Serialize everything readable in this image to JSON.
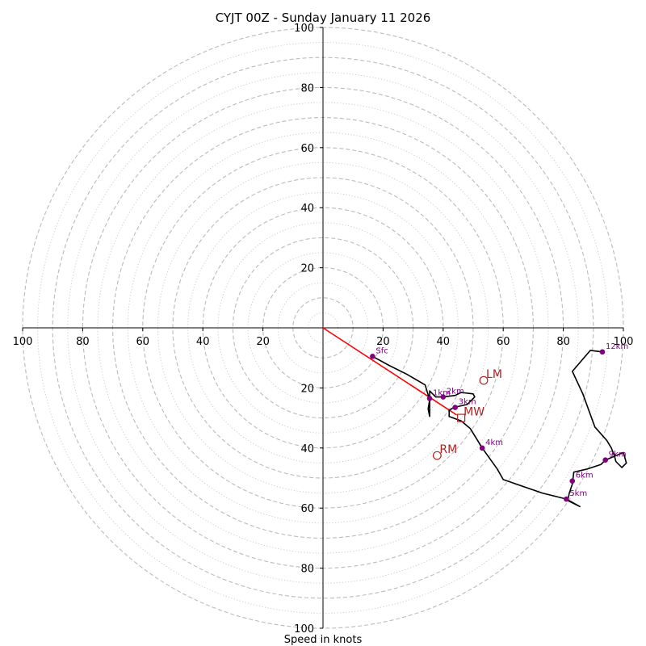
{
  "chart_data": {
    "type": "hodograph",
    "title": "CYJT 00Z - Sunday January 11 2026",
    "xlabel": "Speed in knots",
    "units": "knots",
    "axis_range": [
      -100,
      100
    ],
    "axis_tick_values": [
      20,
      40,
      60,
      80,
      100
    ],
    "axis_tick_labels": [
      "20",
      "40",
      "60",
      "80",
      "100"
    ],
    "ring_speeds_dashed": [
      10,
      20,
      30,
      40,
      50,
      60,
      70,
      80,
      90,
      100
    ],
    "ring_speeds_dotted": [
      5,
      15,
      25,
      35,
      45,
      55,
      65,
      75,
      85,
      95
    ],
    "colors": {
      "trace": "#000000",
      "points": "#800080",
      "motion": "#b22222",
      "shear_vector": "#ff0000",
      "rings": "#bbbbbb",
      "axes": "#000000"
    },
    "trace": [
      [
        16.5,
        -9.5
      ],
      [
        22,
        -12.5
      ],
      [
        28,
        -15.5
      ],
      [
        34,
        -19
      ],
      [
        35.5,
        -24
      ],
      [
        35,
        -27
      ],
      [
        35.5,
        -29.5
      ],
      [
        35.5,
        -26.5
      ],
      [
        35.5,
        -23.5
      ],
      [
        35.5,
        -21
      ],
      [
        37.5,
        -23
      ],
      [
        40,
        -23
      ],
      [
        44,
        -22.5
      ],
      [
        46,
        -21.5
      ],
      [
        50,
        -22
      ],
      [
        50.5,
        -23
      ],
      [
        48,
        -25.5
      ],
      [
        43.5,
        -26.5
      ],
      [
        42,
        -27.5
      ],
      [
        42,
        -29.5
      ],
      [
        46,
        -31
      ],
      [
        49,
        -33.5
      ],
      [
        53,
        -40
      ],
      [
        58,
        -47
      ],
      [
        60,
        -50.5
      ],
      [
        73,
        -55
      ],
      [
        81,
        -57
      ],
      [
        85.5,
        -59.5
      ],
      [
        81.5,
        -57.5
      ],
      [
        82,
        -55
      ],
      [
        83,
        -52
      ],
      [
        83.5,
        -48
      ],
      [
        88,
        -47
      ],
      [
        92.5,
        -45.5
      ],
      [
        94,
        -44
      ],
      [
        100,
        -41.5
      ],
      [
        101,
        -45
      ],
      [
        99.5,
        -46.5
      ],
      [
        97.5,
        -44.5
      ],
      [
        97,
        -42.5
      ],
      [
        96,
        -40
      ],
      [
        94.5,
        -37.5
      ],
      [
        90.5,
        -33
      ],
      [
        86.5,
        -22
      ],
      [
        83,
        -14.5
      ],
      [
        89,
        -7.5
      ],
      [
        93,
        -8
      ]
    ],
    "points": [
      {
        "label": "Sfc",
        "u": 16.5,
        "v": -9.5
      },
      {
        "label": "1km",
        "u": 35.5,
        "v": -23.5
      },
      {
        "label": "2km",
        "u": 40,
        "v": -23
      },
      {
        "label": "3km",
        "u": 44,
        "v": -26.5
      },
      {
        "label": "4km",
        "u": 53,
        "v": -40
      },
      {
        "label": "5km",
        "u": 81,
        "v": -57
      },
      {
        "label": "6km",
        "u": 83,
        "v": -51
      },
      {
        "label": "9km",
        "u": 94,
        "v": -44
      },
      {
        "label": "12km",
        "u": 93,
        "v": -8
      }
    ],
    "motions": [
      {
        "label": "LM",
        "u": 53.5,
        "v": -17.5,
        "marker": "circle"
      },
      {
        "label": "MW",
        "u": 46,
        "v": -30,
        "marker": "square"
      },
      {
        "label": "RM",
        "u": 38,
        "v": -42.5,
        "marker": "circle"
      }
    ],
    "shear_vector": {
      "from": [
        0,
        0
      ],
      "to": [
        44.5,
        -29
      ]
    }
  }
}
